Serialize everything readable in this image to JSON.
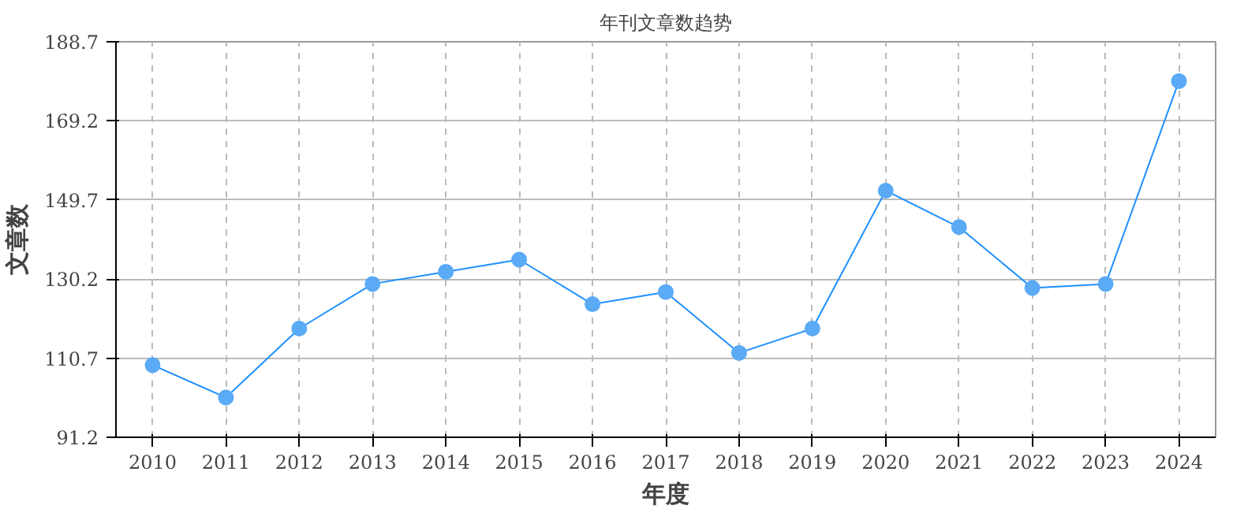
{
  "chart_data": {
    "type": "line",
    "title": "年刊文章数趋势",
    "xlabel": "年度",
    "ylabel": "文章数",
    "categories": [
      "2010",
      "2011",
      "2012",
      "2013",
      "2014",
      "2015",
      "2016",
      "2017",
      "2018",
      "2019",
      "2020",
      "2021",
      "2022",
      "2023",
      "2024"
    ],
    "series": [
      {
        "color": "#1e90ff",
        "values": [
          109,
          101,
          118,
          129,
          132,
          135,
          124,
          127,
          112,
          118,
          152,
          143,
          128,
          129,
          179
        ]
      }
    ],
    "ylim": [
      91.2,
      188.7
    ],
    "yticks": [
      91.2,
      110.7,
      130.2,
      149.7,
      169.2,
      188.7
    ],
    "grid": true,
    "marker": "circle",
    "line_style": "solid"
  }
}
